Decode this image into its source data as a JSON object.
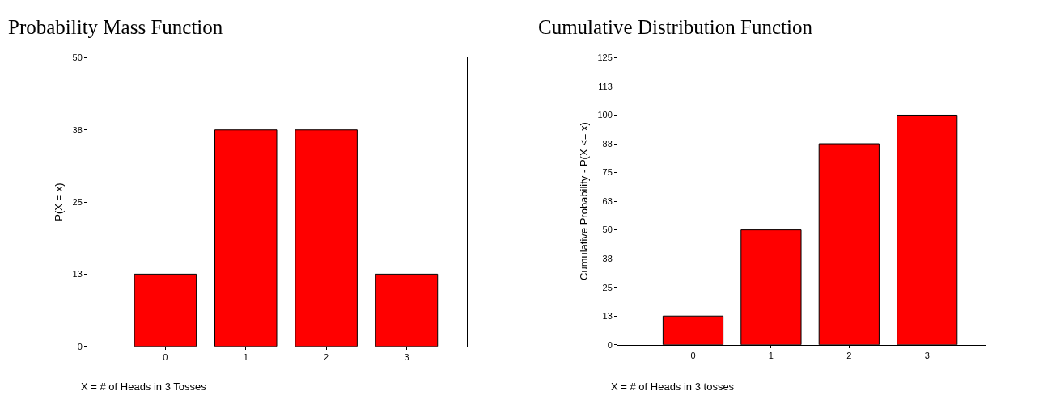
{
  "chart_data": [
    {
      "type": "bar",
      "title": "Probability Mass Function",
      "xlabel": "X = # of Heads in 3 Tosses",
      "ylabel": "P(X = x)",
      "categories": [
        "0",
        "1",
        "2",
        "3"
      ],
      "values": [
        12.5,
        37.5,
        37.5,
        12.5
      ],
      "color": "#ff0000",
      "ylim": [
        0,
        50
      ],
      "yticks": [
        0,
        {
          "value": 12.5,
          "label": "13"
        },
        25,
        {
          "value": 37.5,
          "label": "38"
        },
        50
      ]
    },
    {
      "type": "bar",
      "title": "Cumulative Distribution Function",
      "xlabel": "X = # of Heads in 3 tosses",
      "ylabel": "Cumulative Probability - P(X <= x)",
      "categories": [
        "0",
        "1",
        "2",
        "3"
      ],
      "values": [
        12.5,
        50,
        87.5,
        100
      ],
      "color": "#ff0000",
      "ylim": [
        0,
        125
      ],
      "yticks": [
        0,
        {
          "value": 12.5,
          "label": "13"
        },
        25,
        {
          "value": 37.5,
          "label": "38"
        },
        50,
        {
          "value": 62.5,
          "label": "63"
        },
        75,
        {
          "value": 87.5,
          "label": "88"
        },
        100,
        {
          "value": 112.5,
          "label": "113"
        },
        125
      ]
    }
  ]
}
